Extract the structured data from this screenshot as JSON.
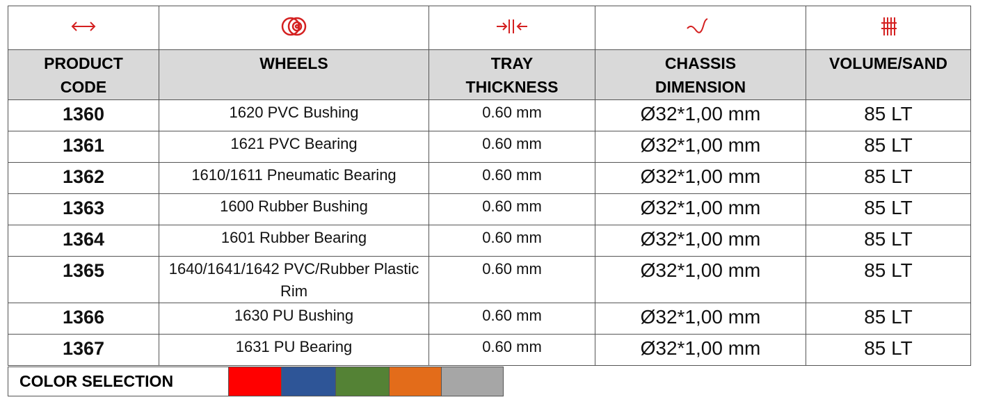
{
  "header": {
    "columns": [
      "PRODUCT CODE",
      "WHEELS",
      "TRAY THICKNESS",
      "CHASSIS DIMENSION",
      "VOLUME/SAND"
    ]
  },
  "table": {
    "rows": [
      [
        "1360",
        "1620 PVC Bushing",
        "0.60 mm",
        "Ø32*1,00 mm",
        "85 LT"
      ],
      [
        "1361",
        "1621 PVC Bearing",
        "0.60 mm",
        "Ø32*1,00 mm",
        "85 LT"
      ],
      [
        "1362",
        "1610/1611 Pneumatic Bearing",
        "0.60 mm",
        "Ø32*1,00 mm",
        "85 LT"
      ],
      [
        "1363",
        "1600 Rubber Bushing",
        "0.60 mm",
        "Ø32*1,00 mm",
        "85 LT"
      ],
      [
        "1364",
        "1601 Rubber Bearing",
        "0.60 mm",
        "Ø32*1,00 mm",
        "85 LT"
      ],
      [
        "1365",
        "1640/1641/1642 PVC/Rubber Plastic Rim",
        "0.60 mm",
        "Ø32*1,00 mm",
        "85 LT"
      ],
      [
        "1366",
        "1630 PU Bushing",
        "0.60 mm",
        "Ø32*1,00 mm",
        "85 LT"
      ],
      [
        "1367",
        "1631 PU Bearing",
        "0.60 mm",
        "Ø32*1,00 mm",
        "85 LT"
      ]
    ]
  },
  "color_selection": {
    "label": "COLOR SELECTION",
    "colors": [
      "#ff0000",
      "#2e5597",
      "#548235",
      "#e36c1a",
      "#a6a6a6"
    ]
  }
}
